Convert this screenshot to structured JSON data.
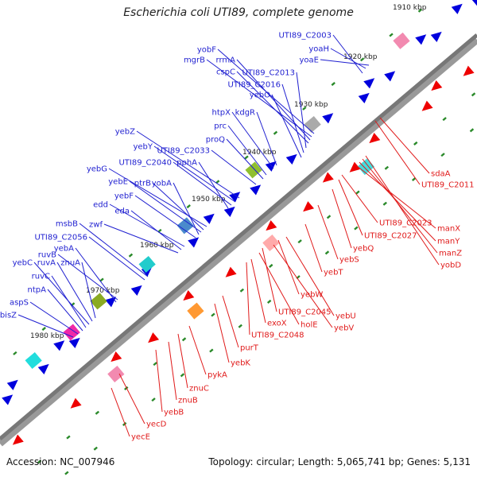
{
  "title": "Escherichia coli UTI89, complete genome",
  "accession": "Accession: NC_007946",
  "topology": "Topology: circular; Length: 5,065,741 bp; Genes: 5,131",
  "colors": {
    "forward_label": "#1f1fd0",
    "reverse_label": "#e01a1a",
    "forward_gene": "#0000dd",
    "reverse_gene": "#ee0000",
    "backbone": "#777777",
    "tick_marker": "#2a8a2a"
  },
  "scale_ticks": [
    "1910 kbp",
    "1920 kbp",
    "1930 kbp",
    "1940 kbp",
    "1950 kbp",
    "1960 kbp",
    "1970 kbp",
    "1980 kbp"
  ],
  "forward_genes": [
    "yobF",
    "mgrB",
    "rrmA",
    "cspC",
    "UTI89_C2013",
    "UTI89_C2016",
    "yebO",
    "htpX",
    "kdgR",
    "prc",
    "proQ",
    "UTI89_C2033",
    "yebZ",
    "yebY",
    "UTI89_C2040",
    "pphA",
    "yebG",
    "ptrB",
    "yebE",
    "yobA",
    "yebF",
    "edd",
    "eda",
    "zwf",
    "msbB",
    "UTI89_C2056",
    "ruvB",
    "yebA",
    "yebC",
    "ruvA",
    "znuA",
    "ruvC",
    "ntpA",
    "aspS",
    "bisZ",
    "UTI89_C2003",
    "yoaH",
    "yoaE"
  ],
  "reverse_genes": [
    "sdaA",
    "UTI89_C2011",
    "manX",
    "manY",
    "manZ",
    "yobD",
    "UTI89_C2023",
    "UTI89_C2027",
    "yebQ",
    "yebS",
    "yebT",
    "yebW",
    "yebU",
    "yebV",
    "UTI89_C2045",
    "holE",
    "exoX",
    "UTI89_C2048",
    "purT",
    "yebK",
    "pykA",
    "znuC",
    "znuB",
    "yebB",
    "yecD",
    "yecE"
  ]
}
